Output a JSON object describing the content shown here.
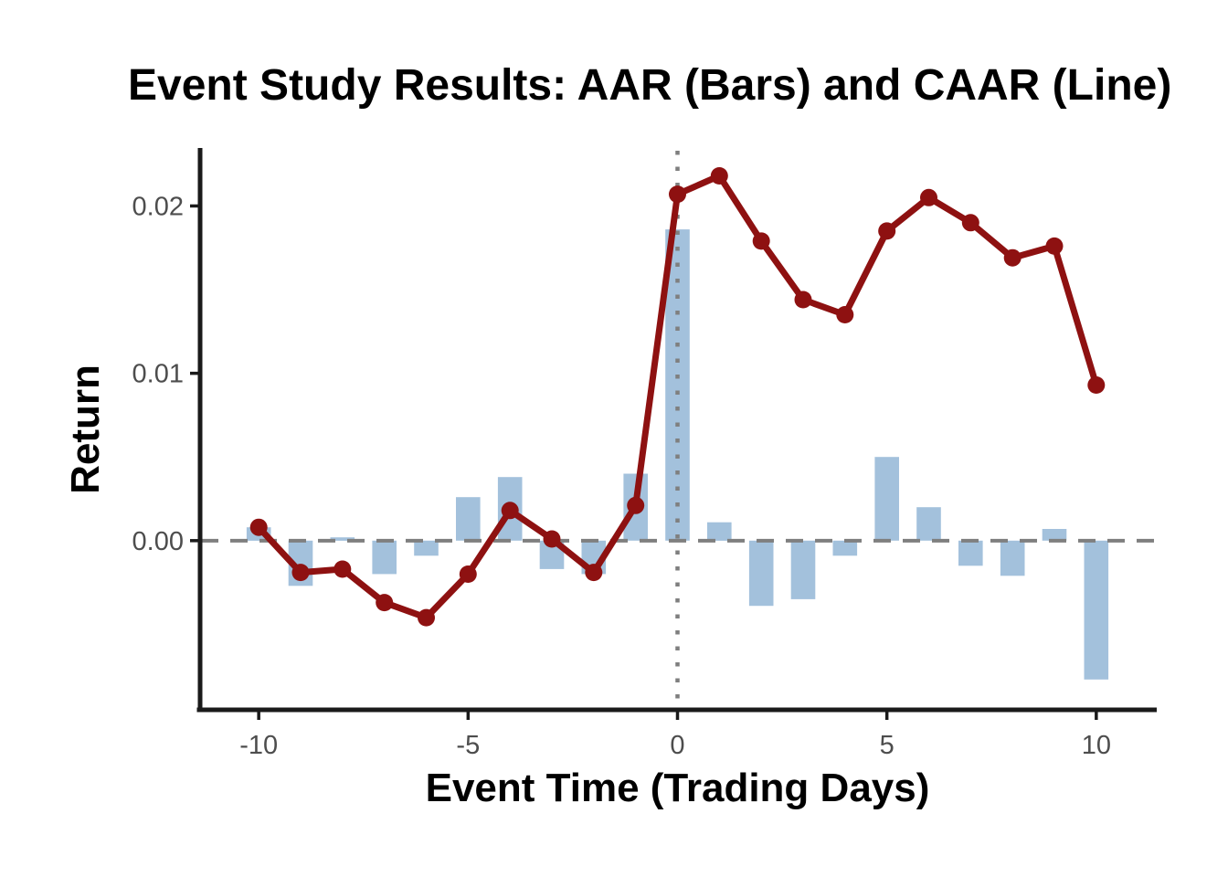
{
  "chart_data": {
    "type": "bar+line",
    "title": "Event Study Results: AAR (Bars) and CAAR (Line)",
    "xlabel": "Event Time (Trading Days)",
    "ylabel": "Return",
    "x": [
      -10,
      -9,
      -8,
      -7,
      -6,
      -5,
      -4,
      -3,
      -2,
      -1,
      0,
      1,
      2,
      3,
      4,
      5,
      6,
      7,
      8,
      9,
      10
    ],
    "series": [
      {
        "name": "AAR",
        "type": "bar",
        "values": [
          0.0008,
          -0.0027,
          0.0002,
          -0.002,
          -0.0009,
          0.0026,
          0.0038,
          -0.0017,
          -0.002,
          0.004,
          0.0186,
          0.0011,
          -0.0039,
          -0.0035,
          -0.0009,
          0.005,
          0.002,
          -0.0015,
          -0.0021,
          0.0007,
          -0.0083
        ]
      },
      {
        "name": "CAAR",
        "type": "line",
        "values": [
          0.0008,
          -0.0019,
          -0.0017,
          -0.0037,
          -0.0046,
          -0.002,
          0.0018,
          0.0001,
          -0.0019,
          0.0021,
          0.0207,
          0.0218,
          0.0179,
          0.0144,
          0.0135,
          0.0185,
          0.0205,
          0.019,
          0.0169,
          0.0176,
          0.0093
        ]
      }
    ],
    "axis": {
      "xticks": [
        -10,
        -5,
        0,
        5,
        10
      ],
      "xtick_labels": [
        "-10",
        "-5",
        "0",
        "5",
        "10"
      ],
      "yticks": [
        0.0,
        0.01,
        0.02
      ],
      "ytick_labels": [
        "0.00",
        "0.01",
        "0.02"
      ]
    },
    "xlim": [
      -11.4,
      11.4
    ],
    "ylim": [
      -0.01,
      0.0233
    ],
    "grid": false,
    "legend": "none",
    "reference_lines": {
      "horizontal_dashed_y": 0,
      "vertical_dotted_x": 0
    },
    "colors": {
      "bar": "#a3c1dc",
      "line": "#8e1111",
      "reference": "#7f7f7f",
      "axis_text": "#4d4d4d",
      "axis_line": "#1a1a1a",
      "background": "#ffffff"
    }
  }
}
